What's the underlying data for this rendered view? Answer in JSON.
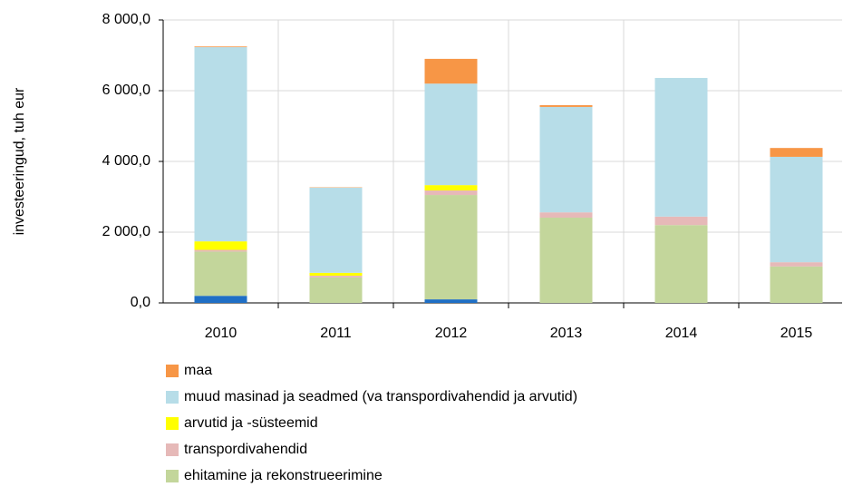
{
  "chart_data": {
    "type": "stacked_bar",
    "y_label": "investeeringud, tuh eur",
    "categories": [
      "2010",
      "2011",
      "2012",
      "2013",
      "2014",
      "2015"
    ],
    "series": [
      {
        "name": null,
        "color": "#1f6fc5",
        "values": [
          200,
          0,
          100,
          0,
          0,
          0
        ]
      },
      {
        "name": "ehitamine ja rekonstrueerimine",
        "color": "#c3d69b",
        "values": [
          1250,
          720,
          2950,
          2410,
          2200,
          1030
        ]
      },
      {
        "name": "transpordivahendid",
        "color": "#e6b9b8",
        "values": [
          50,
          50,
          130,
          150,
          240,
          120
        ]
      },
      {
        "name": "arvutid ja -süsteemid",
        "color": "#ffff00",
        "values": [
          240,
          80,
          150,
          0,
          0,
          0
        ]
      },
      {
        "name": "muud masinad ja seadmed (va transpordivahendid ja arvutid)",
        "color": "#b7dde8",
        "values": [
          5490,
          2410,
          2870,
          2980,
          3920,
          2980
        ]
      },
      {
        "name": "maa",
        "color": "#f79646",
        "values": [
          20,
          10,
          700,
          50,
          0,
          250
        ]
      }
    ],
    "ylim": [
      0,
      8000
    ],
    "yticks": [
      {
        "value": 0,
        "label": "0,0"
      },
      {
        "value": 2000,
        "label": "2 000,0"
      },
      {
        "value": 4000,
        "label": "4 000,0"
      },
      {
        "value": 6000,
        "label": "6 000,0"
      },
      {
        "value": 8000,
        "label": "8 000,0"
      }
    ],
    "grid": true
  }
}
